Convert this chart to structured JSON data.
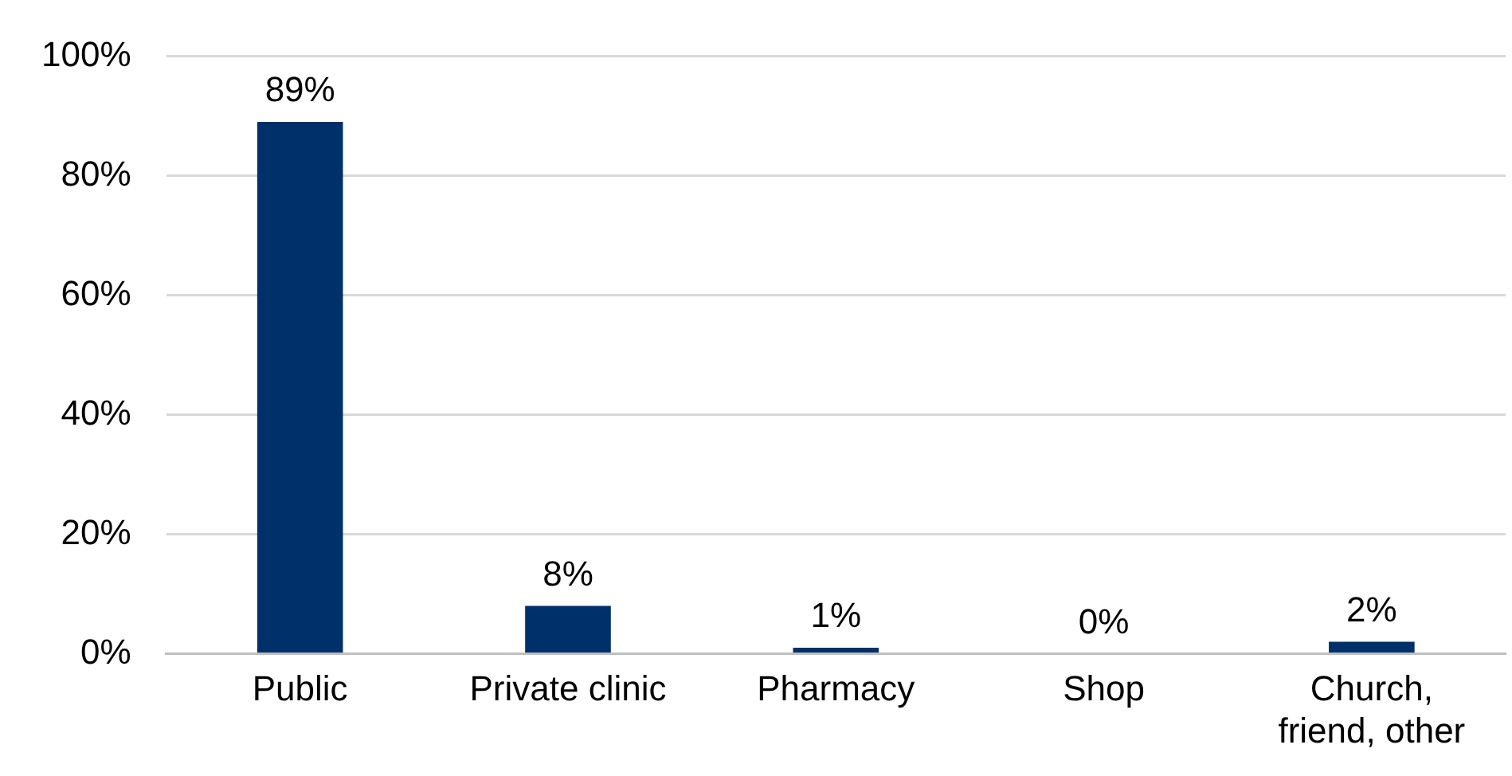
{
  "chart_data": {
    "type": "bar",
    "categories": [
      "Public",
      "Private clinic",
      "Pharmacy",
      "Shop",
      "Church, friend, other"
    ],
    "values": [
      89,
      8,
      1,
      0,
      2
    ],
    "color": "#003069",
    "value_labels": [
      "89%",
      "8%",
      "1%",
      "0%",
      "2%"
    ],
    "ylim": [
      0,
      100
    ],
    "yticks": [
      {
        "value": 0,
        "label": "0%"
      },
      {
        "value": 20,
        "label": "20%"
      },
      {
        "value": 40,
        "label": "40%"
      },
      {
        "value": 60,
        "label": "60%"
      },
      {
        "value": 80,
        "label": "80%"
      },
      {
        "value": 100,
        "label": "100%"
      }
    ],
    "grid": "y",
    "legend": false
  }
}
